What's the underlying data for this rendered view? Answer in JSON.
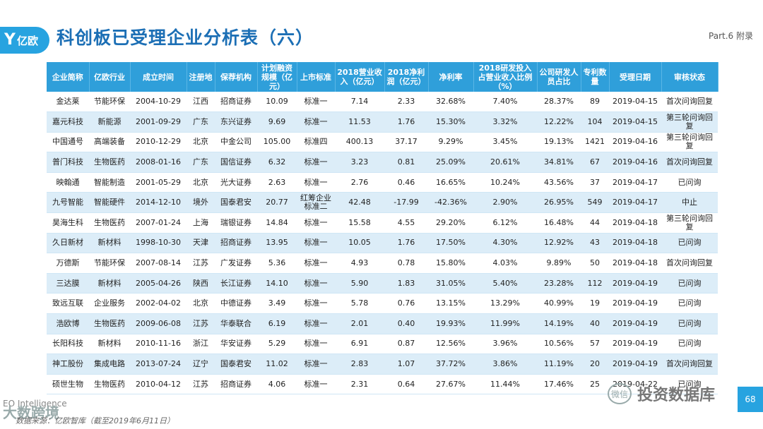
{
  "logo": {
    "mark": "Y",
    "text": "亿欧"
  },
  "title": "科创板已受理企业分析表（六）",
  "part": "Part.6 附录",
  "table": {
    "headers": [
      "企业简称",
      "亿欧行业",
      "成立时间",
      "注册地",
      "保荐机构",
      "计划融资规模（亿元）",
      "上市标准",
      "2018营业收入（亿元）",
      "2018净利润（亿元）",
      "净利率",
      "2018研发投入占营业收入比例（%）",
      "公司研发人员占比",
      "专利数量",
      "受理日期",
      "审核状态"
    ],
    "rows": [
      [
        "金达莱",
        "节能环保",
        "2004-10-29",
        "江西",
        "招商证券",
        "10.09",
        "标准一",
        "7.14",
        "2.33",
        "32.68%",
        "7.40%",
        "28.37%",
        "89",
        "2019-04-15",
        "首次问询回复"
      ],
      [
        "嘉元科技",
        "新能源",
        "2001-09-29",
        "广东",
        "东兴证券",
        "9.69",
        "标准一",
        "11.53",
        "1.76",
        "15.30%",
        "3.32%",
        "12.22%",
        "104",
        "2019-04-15",
        "第三轮问询回复"
      ],
      [
        "中国通号",
        "高端装备",
        "2010-12-29",
        "北京",
        "中金公司",
        "105.00",
        "标准四",
        "400.13",
        "37.17",
        "9.29%",
        "3.45%",
        "19.13%",
        "1421",
        "2019-04-16",
        "第三轮问询回复"
      ],
      [
        "普门科技",
        "生物医药",
        "2008-01-16",
        "广东",
        "国信证券",
        "6.32",
        "标准一",
        "3.23",
        "0.81",
        "25.09%",
        "20.61%",
        "34.81%",
        "67",
        "2019-04-16",
        "首次问询回复"
      ],
      [
        "映翰通",
        "智能制造",
        "2001-05-29",
        "北京",
        "光大证券",
        "2.63",
        "标准一",
        "2.76",
        "0.46",
        "16.65%",
        "10.24%",
        "43.56%",
        "37",
        "2019-04-17",
        "已问询"
      ],
      [
        "九号智能",
        "智能硬件",
        "2014-12-10",
        "境外",
        "国泰君安",
        "20.77",
        "红筹企业标准二",
        "42.48",
        "-17.99",
        "-42.36%",
        "2.90%",
        "26.95%",
        "549",
        "2019-04-17",
        "中止"
      ],
      [
        "昊海生科",
        "生物医药",
        "2007-01-24",
        "上海",
        "瑞银证券",
        "14.84",
        "标准一",
        "15.58",
        "4.55",
        "29.20%",
        "6.12%",
        "16.48%",
        "44",
        "2019-04-18",
        "第三轮问询回复"
      ],
      [
        "久日新材",
        "新材料",
        "1998-10-30",
        "天津",
        "招商证券",
        "13.95",
        "标准一",
        "10.05",
        "1.76",
        "17.50%",
        "4.30%",
        "12.92%",
        "43",
        "2019-04-18",
        "已问询"
      ],
      [
        "万德斯",
        "节能环保",
        "2007-08-14",
        "江苏",
        "广发证券",
        "5.36",
        "标准一",
        "4.93",
        "0.78",
        "15.80%",
        "4.03%",
        "9.89%",
        "50",
        "2019-04-18",
        "首次问询回复"
      ],
      [
        "三达膜",
        "新材料",
        "2005-04-26",
        "陕西",
        "长江证券",
        "14.10",
        "标准一",
        "5.90",
        "1.83",
        "31.05%",
        "5.40%",
        "23.28%",
        "112",
        "2019-04-19",
        "已问询"
      ],
      [
        "致远互联",
        "企业服务",
        "2002-04-02",
        "北京",
        "中德证券",
        "3.49",
        "标准一",
        "5.78",
        "0.76",
        "13.15%",
        "13.29%",
        "40.99%",
        "19",
        "2019-04-19",
        "已问询"
      ],
      [
        "浩欧博",
        "生物医药",
        "2009-06-08",
        "江苏",
        "华泰联合",
        "6.19",
        "标准一",
        "2.01",
        "0.40",
        "19.93%",
        "11.99%",
        "14.19%",
        "40",
        "2019-04-19",
        "已问询"
      ],
      [
        "长阳科技",
        "新材料",
        "2010-11-16",
        "浙江",
        "华安证券",
        "5.29",
        "标准一",
        "6.91",
        "0.87",
        "12.56%",
        "3.96%",
        "10.56%",
        "57",
        "2019-04-19",
        "已问询"
      ],
      [
        "神工股份",
        "集成电路",
        "2013-07-24",
        "辽宁",
        "国泰君安",
        "11.02",
        "标准一",
        "2.83",
        "1.07",
        "37.72%",
        "3.86%",
        "11.19%",
        "20",
        "2019-04-19",
        "首次问询回复"
      ],
      [
        "硕世生物",
        "生物医药",
        "2010-04-12",
        "江苏",
        "招商证券",
        "4.06",
        "标准一",
        "2.31",
        "0.64",
        "27.67%",
        "11.44%",
        "17.46%",
        "25",
        "2019-04-22",
        "已问询"
      ]
    ]
  },
  "footer": {
    "brand_small": "EO Intelligence",
    "brand_big": "大数跨境",
    "source": "数据来源：亿欧智库（截至2019年6月11日）",
    "wechat": "微信",
    "channel": "投资数据库",
    "page": "68"
  }
}
